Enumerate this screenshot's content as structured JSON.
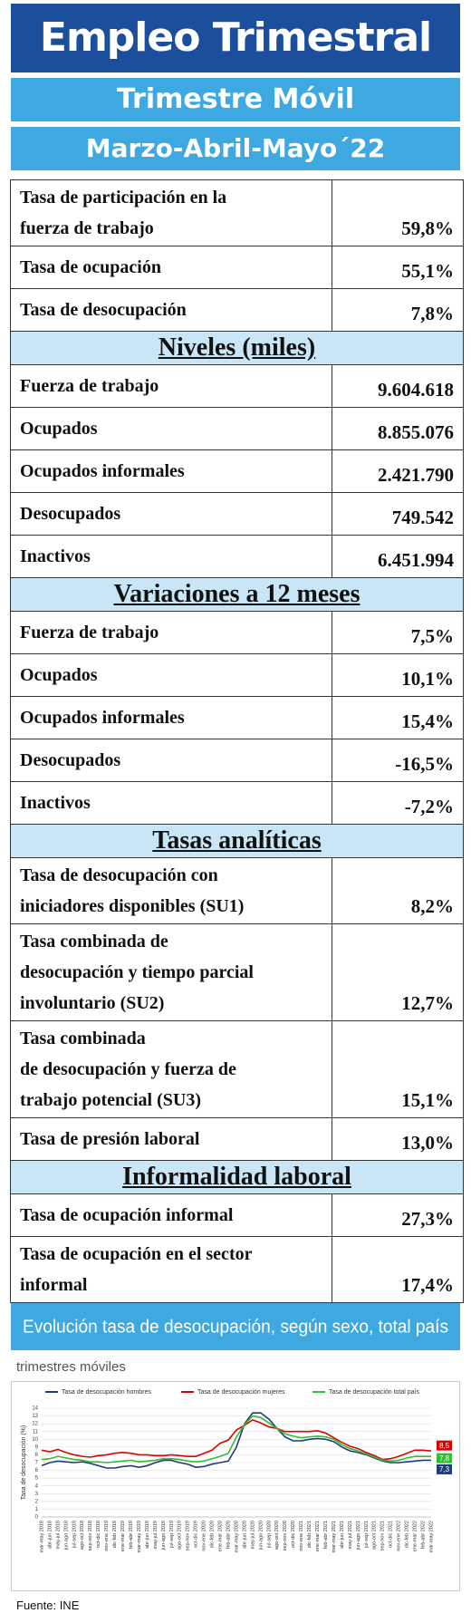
{
  "header": {
    "title": "Empleo Trimestral",
    "subtitle": "Trimestre Móvil",
    "period": "Marzo-Abril-Mayo´22"
  },
  "table": {
    "sections": [
      {
        "rows": [
          [
            "Tasa de participación en la\nfuerza de trabajo",
            "59,8%"
          ],
          [
            "Tasa de ocupación",
            "55,1%"
          ],
          [
            "Tasa de desocupación",
            "7,8%"
          ]
        ]
      },
      {
        "heading": "Niveles  (miles)",
        "rows": [
          [
            "Fuerza de trabajo",
            "9.604.618"
          ],
          [
            "Ocupados",
            "8.855.076"
          ],
          [
            "Ocupados informales",
            "2.421.790"
          ],
          [
            "Desocupados",
            "749.542"
          ],
          [
            "Inactivos",
            "6.451.994"
          ]
        ]
      },
      {
        "heading": "Variaciones a 12 meses",
        "rows": [
          [
            "Fuerza de trabajo",
            "7,5%"
          ],
          [
            "Ocupados",
            "10,1%"
          ],
          [
            "Ocupados informales",
            "15,4%"
          ],
          [
            "Desocupados",
            "-16,5%"
          ],
          [
            "Inactivos",
            "-7,2%"
          ]
        ]
      },
      {
        "heading": "Tasas  analíticas",
        "rows": [
          [
            "Tasa de desocupación con\niniciadores disponibles (SU1)",
            "8,2%"
          ],
          [
            "Tasa combinada de\ndesocupación y tiempo parcial\ninvoluntario (SU2)",
            "12,7%"
          ],
          [
            "Tasa combinada\nde desocupación y fuerza de\ntrabajo potencial (SU3)",
            "15,1%"
          ],
          [
            "Tasa de presión laboral",
            "13,0%"
          ]
        ]
      },
      {
        "heading": "Informalidad  laboral",
        "rows": [
          [
            "Tasa de ocupación informal",
            "27,3%"
          ],
          [
            "Tasa de ocupación en el sector\ninformal",
            "17,4%"
          ]
        ]
      }
    ]
  },
  "chart_data": {
    "type": "line",
    "title": "Evolución tasa de desocupación, según sexo, total país",
    "subtitle": "trimestres móviles",
    "y_label": "Tasa de desocupación (%)",
    "categories": [
      "mar-may 2018",
      "abr-jun 2018",
      "may-jul 2018",
      "jun-ago 2018",
      "jul-sep 2018",
      "ago-oct 2018",
      "sep-nov 2018",
      "oct-dic 2018",
      "nov-ene 2019",
      "dic-feb 2019",
      "ene-mar 2019",
      "feb-abr 2019",
      "mar-may 2019",
      "abr-jun 2019",
      "may-jul 2019",
      "jun-ago 2019",
      "jul-sep 2019",
      "ago-oct 2019",
      "sep-nov 2019",
      "oct-dic 2019",
      "nov-ene 2020",
      "dic-feb 2020",
      "ene-mar 2020",
      "feb-abr 2020",
      "mar-may 2020",
      "abr-jun 2020",
      "may-jul 2020",
      "jun-ago 2020",
      "jul-sep 2020",
      "ago-oct 2020",
      "sep-nov 2020",
      "oct-dic 2020",
      "nov-ene 2021",
      "dic-feb 2021",
      "ene-mar 2021",
      "feb-abr 2021",
      "mar-may 2021",
      "abr-jun 2021",
      "may-jul 2021",
      "jun-ago 2021",
      "jul-sep 2021",
      "ago-oct 2021",
      "sep-nov 2021",
      "oct-dic 2021",
      "nov-ene 2022",
      "dic-feb 2022",
      "ene-mar 2022",
      "feb-abr 2022",
      "mar-may 2022"
    ],
    "series": [
      {
        "name": "Tasa de desocupación hombres",
        "color": "#1f3d7a",
        "values": [
          6.6,
          7.0,
          7.2,
          7.1,
          7.0,
          7.1,
          6.9,
          6.6,
          6.3,
          6.3,
          6.5,
          6.6,
          6.4,
          6.6,
          7.0,
          7.3,
          7.3,
          7.0,
          6.8,
          6.4,
          6.5,
          6.8,
          7.0,
          7.2,
          9.0,
          12.0,
          13.4,
          13.4,
          12.6,
          11.4,
          10.3,
          9.8,
          9.8,
          10.0,
          10.1,
          10.0,
          9.7,
          9.0,
          8.5,
          8.3,
          8.0,
          7.6,
          7.2,
          7.0,
          7.0,
          7.1,
          7.2,
          7.3,
          7.3
        ],
        "value_labels": [
          null,
          null,
          null,
          null,
          null,
          null,
          null,
          null,
          null,
          null,
          null,
          null,
          null,
          null,
          null,
          null,
          null,
          null,
          null,
          null,
          null,
          null,
          null,
          null,
          null,
          null,
          null,
          null,
          null,
          null,
          null,
          null,
          null,
          null,
          null,
          null,
          null,
          null,
          null,
          null,
          null,
          null,
          null,
          null,
          null,
          null,
          null,
          null,
          "7,3"
        ]
      },
      {
        "name": "Tasa de desocupación mujeres",
        "color": "#e00000",
        "values": [
          8.6,
          8.4,
          8.7,
          8.3,
          8.0,
          7.8,
          7.7,
          7.9,
          8.0,
          8.2,
          8.3,
          8.2,
          8.0,
          8.0,
          7.9,
          7.9,
          8.0,
          7.9,
          7.8,
          7.8,
          8.2,
          8.6,
          9.5,
          9.9,
          11.2,
          11.8,
          12.5,
          12.1,
          11.6,
          11.4,
          11.0,
          11.0,
          11.0,
          11.0,
          11.1,
          10.8,
          10.2,
          9.6,
          9.1,
          8.8,
          8.3,
          7.9,
          7.4,
          7.5,
          7.8,
          8.2,
          8.6,
          8.6,
          8.5
        ],
        "value_labels": [
          null,
          null,
          null,
          null,
          null,
          null,
          null,
          null,
          null,
          null,
          null,
          null,
          null,
          null,
          null,
          null,
          null,
          null,
          null,
          null,
          null,
          null,
          null,
          null,
          null,
          null,
          null,
          null,
          null,
          null,
          null,
          null,
          null,
          null,
          null,
          null,
          null,
          null,
          null,
          null,
          null,
          null,
          null,
          null,
          null,
          null,
          null,
          null,
          "8,5"
        ]
      },
      {
        "name": "Tasa de desocupación total país",
        "color": "#2fbf2f",
        "values": [
          7.4,
          7.5,
          7.8,
          7.6,
          7.4,
          7.3,
          7.1,
          7.1,
          7.0,
          7.1,
          7.2,
          7.3,
          7.1,
          7.2,
          7.3,
          7.5,
          7.5,
          7.4,
          7.2,
          7.1,
          7.2,
          7.5,
          7.8,
          8.2,
          10.3,
          11.9,
          13.0,
          12.8,
          12.1,
          11.4,
          10.7,
          10.4,
          10.2,
          10.3,
          10.4,
          10.3,
          10.0,
          9.3,
          8.8,
          8.5,
          8.1,
          7.7,
          7.3,
          7.2,
          7.3,
          7.6,
          7.8,
          7.8,
          7.8
        ],
        "value_labels": [
          null,
          null,
          null,
          null,
          null,
          null,
          null,
          null,
          null,
          null,
          null,
          null,
          null,
          null,
          null,
          null,
          null,
          null,
          null,
          null,
          null,
          null,
          null,
          null,
          null,
          null,
          null,
          null,
          null,
          null,
          null,
          null,
          null,
          null,
          null,
          null,
          null,
          null,
          null,
          null,
          null,
          null,
          null,
          null,
          null,
          null,
          null,
          null,
          "7,8"
        ]
      }
    ],
    "ylim": [
      0,
      14
    ],
    "yticks": [
      0,
      1,
      2,
      3,
      4,
      5,
      6,
      7,
      8,
      9,
      10,
      11,
      12,
      13,
      14
    ],
    "grid": true,
    "legend": "top"
  },
  "source": "Fuente: INE"
}
